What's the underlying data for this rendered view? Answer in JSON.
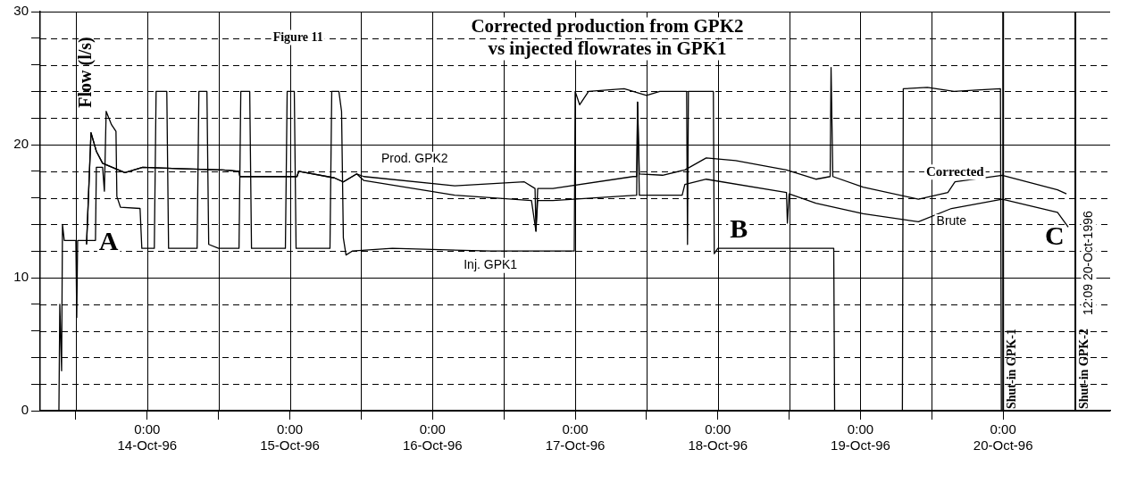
{
  "chart_data": {
    "type": "line",
    "title": "Corrected production from GPK2\nvs injected flowrates in GPK1",
    "ylabel": "Flow (l/s)",
    "xlim": [
      "1996-10-13T06:00",
      "1996-10-20T18:00"
    ],
    "xticks": [
      {
        "value": "1996-10-13T12:00",
        "label": null
      },
      {
        "value": "1996-10-14T00:00",
        "label": "0:00\n14-Oct-96"
      },
      {
        "value": "1996-10-14T12:00",
        "label": null
      },
      {
        "value": "1996-10-15T00:00",
        "label": "0:00\n15-Oct-96"
      },
      {
        "value": "1996-10-15T12:00",
        "label": null
      },
      {
        "value": "1996-10-16T00:00",
        "label": "0:00\n16-Oct-96"
      },
      {
        "value": "1996-10-16T12:00",
        "label": null
      },
      {
        "value": "1996-10-17T00:00",
        "label": "0:00\n17-Oct-96"
      },
      {
        "value": "1996-10-17T12:00",
        "label": null
      },
      {
        "value": "1996-10-18T00:00",
        "label": "0:00\n18-Oct-96"
      },
      {
        "value": "1996-10-18T12:00",
        "label": null
      },
      {
        "value": "1996-10-19T00:00",
        "label": "0:00\n19-Oct-96"
      },
      {
        "value": "1996-10-19T12:00",
        "label": null
      },
      {
        "value": "1996-10-20T00:00",
        "label": "0:00\n20-Oct-96"
      }
    ],
    "ylim": [
      0,
      30
    ],
    "yticks": [
      0,
      {
        "value": 2,
        "label": null
      },
      {
        "value": 4,
        "label": null
      },
      {
        "value": 6,
        "label": null
      },
      {
        "value": 8,
        "label": null
      },
      10,
      {
        "value": 12,
        "label": null
      },
      {
        "value": 14,
        "label": null
      },
      {
        "value": 16,
        "label": null
      },
      {
        "value": 18,
        "label": null
      },
      20,
      {
        "value": 22,
        "label": null
      },
      {
        "value": 24,
        "label": null
      },
      {
        "value": 26,
        "label": null
      },
      {
        "value": 28,
        "label": null
      },
      30
    ],
    "grid": true,
    "legend": false,
    "marker": "none",
    "line_style": "solid",
    "series": [
      {
        "name": "Inj. GPK1",
        "color": "#000000",
        "x": [
          "1996-10-13T09:09",
          "1996-10-13T09:18",
          "1996-10-13T09:36",
          "1996-10-13T09:45",
          "1996-10-13T10:03",
          "1996-10-13T12:00",
          "1996-10-13T12:09",
          "1996-10-13T12:18",
          "1996-10-13T15:18",
          "1996-10-13T15:27",
          "1996-10-13T16:30",
          "1996-10-13T16:48",
          "1996-10-13T17:06",
          "1996-10-13T18:00",
          "1996-10-13T18:45",
          "1996-10-13T18:54",
          "1996-10-13T19:30",
          "1996-10-13T22:48",
          "1996-10-13T23:06",
          "1996-10-14T01:12",
          "1996-10-14T01:30",
          "1996-10-14T03:18",
          "1996-10-14T03:36",
          "1996-10-14T08:24",
          "1996-10-14T08:42",
          "1996-10-14T10:03",
          "1996-10-14T10:21",
          "1996-10-14T12:00",
          "1996-10-14T15:27",
          "1996-10-14T15:45",
          "1996-10-14T17:15",
          "1996-10-14T17:33",
          "1996-10-14T23:15",
          "1996-10-14T23:33",
          "1996-10-15T00:45",
          "1996-10-15T01:03",
          "1996-10-15T06:45",
          "1996-10-15T07:03",
          "1996-10-15T08:15",
          "1996-10-15T08:42",
          "1996-10-15T09:00",
          "1996-10-15T09:27",
          "1996-10-15T10:30",
          "1996-10-15T17:15",
          "1996-10-16T09:45",
          "1996-10-16T23:51",
          "1996-10-17T00:00",
          "1996-10-17T00:45",
          "1996-10-17T02:15",
          "1996-10-17T08:15",
          "1996-10-17T12:00",
          "1996-10-17T14:15",
          "1996-10-17T18:45",
          "1996-10-17T18:54",
          "1996-10-17T19:03",
          "1996-10-17T23:15",
          "1996-10-17T23:24",
          "1996-10-18T00:00",
          "1996-10-18T11:15",
          "1996-10-18T19:30",
          "1996-10-18T19:39",
          "1996-10-19T07:03",
          "1996-10-19T07:12",
          "1996-10-19T11:15",
          "1996-10-19T15:45",
          "1996-10-19T19:30",
          "1996-10-19T23:33",
          "1996-10-19T23:42",
          "1996-10-20T12:09"
        ],
        "values": [
          0,
          8,
          3,
          14,
          12.8,
          12.8,
          7,
          12.8,
          12.8,
          18.3,
          18.3,
          16.5,
          22.5,
          21.5,
          21,
          16.1,
          15.3,
          15.2,
          12.2,
          12.2,
          24,
          24,
          12.2,
          12.2,
          24,
          24,
          12.5,
          12.2,
          12.2,
          24,
          24,
          12.2,
          12.2,
          24,
          24,
          12.2,
          12.2,
          24,
          24,
          22.5,
          13,
          11.7,
          12,
          12.2,
          12,
          12,
          24,
          23,
          24,
          24.2,
          23.7,
          24,
          24,
          12.5,
          24,
          24,
          11.8,
          12.2,
          12.2,
          12.2,
          0,
          0,
          24.2,
          24.3,
          24,
          24.1,
          24.2,
          0,
          0
        ]
      },
      {
        "name": "Corrected",
        "color": "#000000",
        "x": [
          "1996-10-13T13:48",
          "1996-10-13T14:33",
          "1996-10-13T15:27",
          "1996-10-13T16:30",
          "1996-10-13T20:15",
          "1996-10-13T23:15",
          "1996-10-14T05:15",
          "1996-10-14T12:45",
          "1996-10-14T15:27",
          "1996-10-14T15:36",
          "1996-10-15T01:12",
          "1996-10-15T01:30",
          "1996-10-15T07:30",
          "1996-10-15T09:00",
          "1996-10-15T11:15",
          "1996-10-15T12:27",
          "1996-10-16T03:45",
          "1996-10-16T15:27",
          "1996-10-16T17:15",
          "1996-10-16T17:24",
          "1996-10-16T17:42",
          "1996-10-16T20:15",
          "1996-10-17T09:45",
          "1996-10-17T10:21",
          "1996-10-17T10:30",
          "1996-10-17T10:48",
          "1996-10-17T14:42",
          "1996-10-17T18:27",
          "1996-10-17T22:03",
          "1996-10-18T03:00",
          "1996-10-18T11:33",
          "1996-10-18T16:30",
          "1996-10-18T18:54",
          "1996-10-18T19:03",
          "1996-10-18T19:21",
          "1996-10-19T00:27",
          "1996-10-19T09:45",
          "1996-10-19T14:42",
          "1996-10-19T15:54",
          "1996-10-19T23:51",
          "1996-10-20T09:09",
          "1996-10-20T10:39"
        ],
        "values": [
          12.5,
          20.9,
          19.5,
          18.6,
          17.9,
          18.3,
          18.2,
          18.1,
          18,
          17.6,
          17.6,
          18,
          17.5,
          17.2,
          17.8,
          17.6,
          16.9,
          17.2,
          16.7,
          13.5,
          16.7,
          16.7,
          17.6,
          17.6,
          23.2,
          17.8,
          17.7,
          18.1,
          19,
          18.8,
          18.1,
          17.4,
          17.6,
          25.8,
          17.6,
          16.8,
          15.9,
          16.4,
          17.2,
          17.7,
          16.6,
          16.3
        ]
      },
      {
        "name": "Brute",
        "color": "#000000",
        "x": [
          "1996-10-13T13:48",
          "1996-10-13T14:33",
          "1996-10-13T15:27",
          "1996-10-13T16:30",
          "1996-10-13T20:15",
          "1996-10-13T23:15",
          "1996-10-14T05:15",
          "1996-10-14T12:45",
          "1996-10-14T15:27",
          "1996-10-14T15:36",
          "1996-10-15T01:12",
          "1996-10-15T01:30",
          "1996-10-15T07:30",
          "1996-10-15T09:00",
          "1996-10-15T11:15",
          "1996-10-15T12:27",
          "1996-10-16T03:45",
          "1996-10-16T16:39",
          "1996-10-16T17:24",
          "1996-10-16T17:42",
          "1996-10-16T20:15",
          "1996-10-17T10:21",
          "1996-10-17T10:30",
          "1996-10-17T10:48",
          "1996-10-17T18:00",
          "1996-10-17T18:27",
          "1996-10-17T22:03",
          "1996-10-18T11:33",
          "1996-10-18T11:42",
          "1996-10-18T12:00",
          "1996-10-18T16:30",
          "1996-10-19T00:27",
          "1996-10-19T09:45",
          "1996-10-19T15:18",
          "1996-10-19T23:51",
          "1996-10-20T09:09",
          "1996-10-20T10:57"
        ],
        "values": [
          12.5,
          20.9,
          19.5,
          18.6,
          17.9,
          18.3,
          18.2,
          18.1,
          18,
          17.6,
          17.6,
          18,
          17.5,
          17.2,
          17.8,
          17.3,
          16.2,
          15.8,
          13.5,
          15.8,
          15.8,
          16.2,
          23.2,
          16.2,
          16.2,
          17,
          17.4,
          16.4,
          14.1,
          16.3,
          15.6,
          14.8,
          14.2,
          15.2,
          15.9,
          14.9,
          13.8
        ]
      }
    ],
    "ref_lines": [
      {
        "axis": "x",
        "value": "1996-10-20T00:00",
        "label": "Shut-in GPK-1"
      },
      {
        "axis": "x",
        "value": "1996-10-20T12:09",
        "label": "Shut-in GPK-2"
      }
    ],
    "annotations": [
      "Figure 11",
      "12:09 20-Oct-1996",
      "A",
      "B",
      "C",
      "Prod. GPK2"
    ]
  }
}
